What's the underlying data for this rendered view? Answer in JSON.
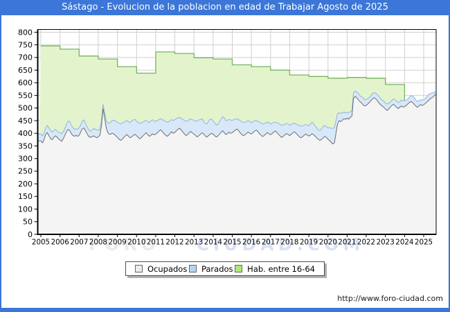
{
  "header": {
    "title": "Sástago - Evolucion de la poblacion en edad de Trabajar Agosto de 2025"
  },
  "footer": {
    "url": "http://www.foro-ciudad.com"
  },
  "watermark": {
    "left": "FORO",
    "right": "CIUDAD.COM"
  },
  "legend": {
    "items": [
      {
        "label": "Ocupados",
        "swatch": "#ebebeb"
      },
      {
        "label": "Parados",
        "swatch": "#b6d3f0"
      },
      {
        "label": "Hab. entre 16-64",
        "swatch": "#b0e674"
      }
    ]
  },
  "colors": {
    "accent_blue": "#3b76d8",
    "grid": "#cfcfcf",
    "frame": "#000000",
    "ocupados_fill": "#f4f4f4",
    "ocupados_line": "#6f6f6f",
    "parados_fill": "#d8e8f8",
    "parados_line": "#8fb3e0",
    "hab_fill": "#e3f4cd",
    "hab_line": "#76b35e",
    "tick_label": "#000000"
  },
  "chart_data": {
    "type": "area",
    "title": "Sástago - Evolucion de la poblacion en edad de Trabajar Agosto de 2025",
    "legend_position": "bottom",
    "grid": true,
    "x_axis": {
      "label": "",
      "ticks": [
        2005,
        2006,
        2007,
        2008,
        2009,
        2010,
        2011,
        2012,
        2013,
        2014,
        2015,
        2016,
        2017,
        2018,
        2019,
        2020,
        2021,
        2022,
        2023,
        2024,
        2025
      ]
    },
    "y_axis": {
      "label": "",
      "range": [
        0,
        810
      ],
      "ticks": [
        0,
        50,
        100,
        150,
        200,
        250,
        300,
        350,
        400,
        450,
        500,
        550,
        600,
        650,
        700,
        750,
        800
      ]
    },
    "series": [
      {
        "name": "Hab. entre 16-64",
        "mode": "yearly-step",
        "years": [
          2005,
          2006,
          2007,
          2008,
          2009,
          2010,
          2011,
          2012,
          2013,
          2014,
          2015,
          2016,
          2017,
          2018,
          2019,
          2020,
          2021,
          2022,
          2023,
          2024,
          2025
        ],
        "values": [
          746,
          733,
          706,
          694,
          664,
          638,
          722,
          716,
          699,
          694,
          671,
          664,
          650,
          631,
          625,
          618,
          621,
          618,
          593,
          525,
          530
        ]
      },
      {
        "name": "Ocupados",
        "mode": "monthly",
        "start": "2005-01",
        "end": "2025-08",
        "values": [
          370,
          362,
          375,
          395,
          403,
          392,
          380,
          375,
          382,
          390,
          386,
          378,
          374,
          368,
          378,
          392,
          405,
          415,
          412,
          400,
          392,
          388,
          392,
          388,
          392,
          405,
          418,
          421,
          410,
          398,
          388,
          384,
          386,
          390,
          387,
          382,
          386,
          392,
          430,
          498,
          460,
          420,
          402,
          396,
          398,
          400,
          396,
          390,
          384,
          377,
          372,
          376,
          383,
          390,
          395,
          388,
          382,
          386,
          392,
          396,
          390,
          384,
          378,
          383,
          390,
          396,
          402,
          394,
          388,
          392,
          398,
          394,
          396,
          402,
          408,
          414,
          408,
          400,
          394,
          388,
          392,
          400,
          406,
          400,
          404,
          410,
          416,
          420,
          413,
          405,
          397,
          391,
          395,
          402,
          407,
          401,
          397,
          391,
          386,
          390,
          396,
          402,
          398,
          390,
          385,
          390,
          396,
          400,
          396,
          390,
          385,
          390,
          397,
          404,
          410,
          402,
          395,
          399,
          405,
          400,
          402,
          408,
          413,
          417,
          410,
          402,
          395,
          390,
          394,
          400,
          405,
          400,
          397,
          403,
          409,
          413,
          407,
          399,
          393,
          387,
          391,
          397,
          403,
          398,
          394,
          399,
          405,
          409,
          403,
          396,
          389,
          384,
          388,
          394,
          399,
          395,
          391,
          396,
          402,
          406,
          400,
          393,
          387,
          382,
          386,
          392,
          397,
          393,
          389,
          393,
          398,
          394,
          388,
          382,
          376,
          372,
          376,
          382,
          388,
          384,
          376,
          371,
          364,
          358,
          362,
          400,
          438,
          450,
          446,
          452,
          458,
          455,
          460,
          456,
          463,
          468,
          538,
          546,
          541,
          533,
          526,
          520,
          513,
          508,
          511,
          516,
          523,
          530,
          537,
          541,
          536,
          528,
          520,
          513,
          508,
          503,
          496,
          491,
          495,
          503,
          510,
          515,
          510,
          503,
          498,
          503,
          508,
          504,
          506,
          510,
          516,
          522,
          526,
          522,
          515,
          508,
          503,
          508,
          514,
          510,
          513,
          518,
          524,
          530,
          536,
          540,
          544,
          552
        ]
      },
      {
        "name": "Parados",
        "mode": "monthly",
        "stacked_on": "Ocupados",
        "start": "2005-01",
        "end": "2025-08",
        "values": [
          27,
          28,
          26,
          25,
          28,
          30,
          32,
          30,
          28,
          26,
          25,
          26,
          28,
          30,
          28,
          26,
          30,
          33,
          35,
          33,
          30,
          28,
          26,
          28,
          30,
          28,
          30,
          32,
          30,
          28,
          26,
          24,
          26,
          28,
          30,
          32,
          26,
          24,
          20,
          17,
          22,
          30,
          38,
          44,
          48,
          52,
          55,
          58,
          60,
          63,
          66,
          64,
          61,
          58,
          56,
          58,
          61,
          63,
          61,
          59,
          57,
          59,
          61,
          58,
          55,
          52,
          50,
          52,
          55,
          58,
          56,
          54,
          51,
          49,
          46,
          44,
          47,
          51,
          54,
          56,
          53,
          50,
          48,
          50,
          50,
          48,
          45,
          43,
          46,
          50,
          54,
          57,
          55,
          52,
          50,
          52,
          55,
          58,
          61,
          63,
          59,
          55,
          51,
          49,
          52,
          56,
          59,
          56,
          53,
          51,
          48,
          46,
          49,
          53,
          56,
          58,
          55,
          52,
          50,
          52,
          49,
          46,
          43,
          41,
          44,
          48,
          51,
          53,
          50,
          47,
          45,
          47,
          45,
          43,
          40,
          38,
          41,
          45,
          48,
          50,
          47,
          44,
          42,
          44,
          43,
          41,
          38,
          36,
          39,
          43,
          46,
          48,
          45,
          42,
          40,
          42,
          41,
          39,
          36,
          34,
          37,
          41,
          44,
          46,
          43,
          40,
          38,
          40,
          41,
          43,
          46,
          44,
          41,
          39,
          37,
          39,
          42,
          45,
          43,
          41,
          46,
          51,
          56,
          61,
          59,
          51,
          41,
          31,
          33,
          29,
          26,
          25,
          23,
          25,
          23,
          21,
          23,
          21,
          23,
          25,
          23,
          25,
          27,
          25,
          23,
          21,
          20,
          19,
          21,
          20,
          22,
          24,
          26,
          25,
          23,
          25,
          23,
          25,
          23,
          21,
          19,
          21,
          23,
          25,
          23,
          21,
          23,
          25,
          23,
          21,
          19,
          21,
          23,
          25,
          27,
          25,
          23,
          21,
          19,
          21,
          21,
          19,
          21,
          23,
          21,
          19,
          17,
          12
        ]
      }
    ]
  }
}
